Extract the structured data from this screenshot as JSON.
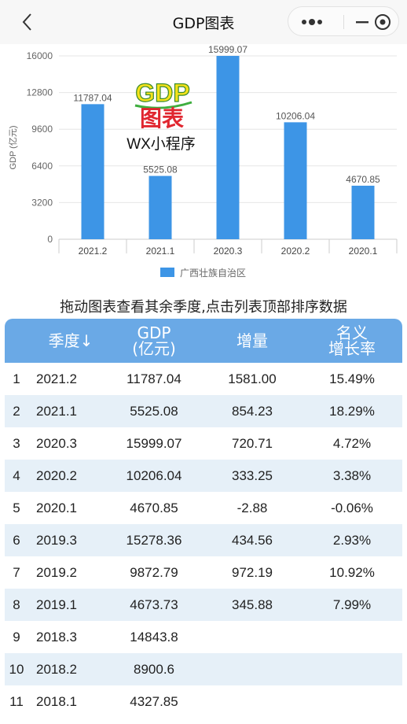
{
  "app": {
    "title": "GDP图表"
  },
  "chart_data": {
    "type": "bar",
    "categories": [
      "2021.2",
      "2021.1",
      "2020.3",
      "2020.2",
      "2020.1"
    ],
    "series": [
      {
        "name": "广西壮族自治区",
        "values": [
          11787.04,
          5525.08,
          15999.07,
          10206.04,
          4670.85
        ]
      }
    ],
    "ylabel": "GDP (亿元)",
    "yticks": [
      0,
      3200,
      6400,
      9600,
      12800,
      16000
    ],
    "ylim": [
      0,
      16000
    ],
    "grid": true,
    "legend": "bottom",
    "color": "#3d95e6"
  },
  "watermark": {
    "line1": "GDP",
    "line2": "图表",
    "line3": "WX小程序"
  },
  "hint": "拖动图表查看其余季度,点击列表顶部排序数据",
  "table": {
    "headers": [
      "季度↓",
      "GDP\n(亿元)",
      "增量",
      "名义\n增长率"
    ],
    "rows": [
      [
        "1",
        "2021.2",
        "11787.04",
        "1581.00",
        "15.49%"
      ],
      [
        "2",
        "2021.1",
        "5525.08",
        "854.23",
        "18.29%"
      ],
      [
        "3",
        "2020.3",
        "15999.07",
        "720.71",
        "4.72%"
      ],
      [
        "4",
        "2020.2",
        "10206.04",
        "333.25",
        "3.38%"
      ],
      [
        "5",
        "2020.1",
        "4670.85",
        "-2.88",
        "-0.06%"
      ],
      [
        "6",
        "2019.3",
        "15278.36",
        "434.56",
        "2.93%"
      ],
      [
        "7",
        "2019.2",
        "9872.79",
        "972.19",
        "10.92%"
      ],
      [
        "8",
        "2019.1",
        "4673.73",
        "345.88",
        "7.99%"
      ],
      [
        "9",
        "2018.3",
        "14843.8",
        "",
        ""
      ],
      [
        "10",
        "2018.2",
        "8900.6",
        "",
        ""
      ],
      [
        "11",
        "2018.1",
        "4327.85",
        "",
        ""
      ]
    ]
  }
}
